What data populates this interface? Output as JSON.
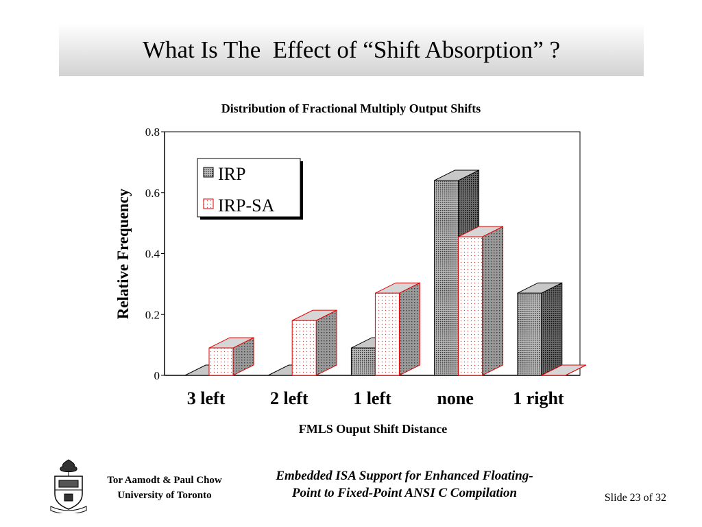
{
  "slide": {
    "title": "What Is The  Effect of “Shift Absorption” ?",
    "author_line1": "Tor Aamodt & Paul Chow",
    "author_line2": "University of Toronto",
    "paper_line1": "Embedded ISA Support for Enhanced Floating-",
    "paper_line2": "Point to Fixed-Point ANSI C Compilation",
    "slide_number": "Slide 23 of 32",
    "logo_icon": "university-crest-icon"
  },
  "chart_data": {
    "type": "bar",
    "title": "Distribution of Fractional Multiply Output Shifts",
    "xlabel": "FMLS Ouput Shift Distance",
    "ylabel": "Relative Frequency",
    "categories": [
      "3 left",
      "2 left",
      "1 left",
      "none",
      "1 right"
    ],
    "series": [
      {
        "name": "IRP",
        "values": [
          0.0,
          0.0,
          0.09,
          0.64,
          0.27
        ],
        "color": "#9a9a9a",
        "edge": "#000000"
      },
      {
        "name": "IRP-SA",
        "values": [
          0.09,
          0.18,
          0.27,
          0.455,
          0.0
        ],
        "color": "#fbe4e4",
        "edge": "#e00000"
      }
    ],
    "ylim": [
      0,
      0.8
    ],
    "yticks": [
      0,
      0.2,
      0.4,
      0.6,
      0.8
    ],
    "ytick_labels": [
      "0",
      "0.2",
      "0.4",
      "0.6",
      "0.8"
    ],
    "grid": false,
    "legend_position": "top-left",
    "style": "3d-bar"
  }
}
